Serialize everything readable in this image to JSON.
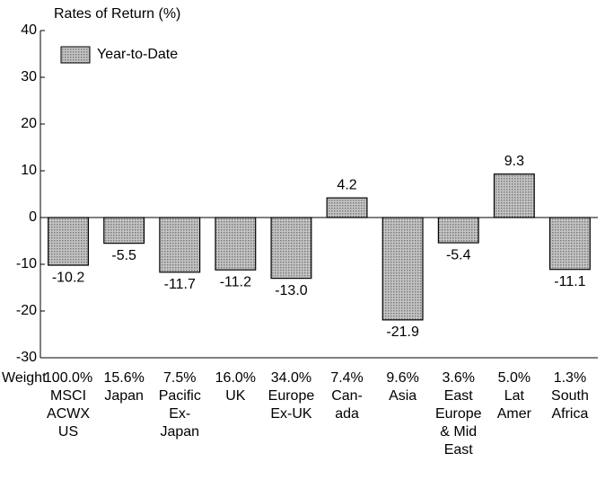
{
  "chart_data": {
    "type": "bar",
    "title": "Rates of Return (%)",
    "legend": "Year-to-Date",
    "legend_position": "upper left",
    "color": "#a9a9a9",
    "weight_label": "Weight",
    "weights": [
      "100.0%",
      "15.6%",
      "7.5%",
      "16.0%",
      "34.0%",
      "7.4%",
      "9.6%",
      "3.6%",
      "5.0%",
      "1.3%"
    ],
    "categories": [
      [
        "MSCI",
        "ACWX",
        "US"
      ],
      [
        "Japan"
      ],
      [
        "Pacific",
        "Ex-",
        "Japan"
      ],
      [
        "UK"
      ],
      [
        "Europe",
        "Ex-UK"
      ],
      [
        "Can-",
        "ada"
      ],
      [
        "Asia"
      ],
      [
        "East",
        "Europe",
        "& Mid",
        "East"
      ],
      [
        "Lat",
        "Amer"
      ],
      [
        "South",
        "Africa"
      ]
    ],
    "values": [
      -10.2,
      -5.5,
      -11.7,
      -11.2,
      -13.0,
      4.2,
      -21.9,
      -5.4,
      9.3,
      -11.1
    ],
    "value_labels": [
      "-10.2",
      "-5.5",
      "-11.7",
      "-11.2",
      "-13.0",
      "4.2",
      "-21.9",
      "-5.4",
      "9.3",
      "-11.1"
    ],
    "ylim": [
      -30,
      40
    ],
    "yticks": [
      -30,
      -20,
      -10,
      0,
      10,
      20,
      30,
      40
    ],
    "grid": false
  }
}
